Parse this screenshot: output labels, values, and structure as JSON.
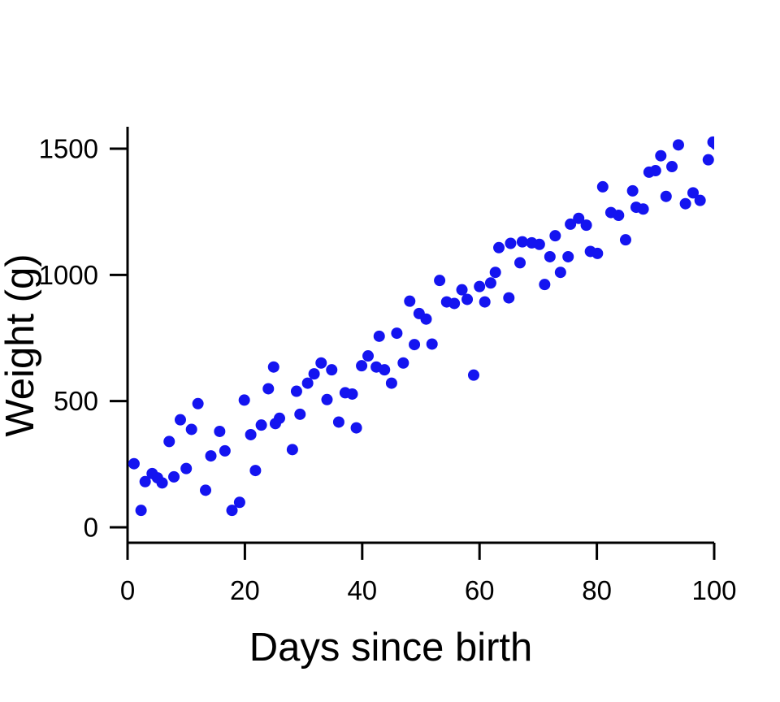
{
  "figure": {
    "background_color": "#ffffff",
    "axis_color": "#000000",
    "point_color": "#1414f0"
  },
  "chart_data": {
    "type": "scatter",
    "title": "",
    "xlabel": "Days since birth",
    "ylabel": "Weight (g)",
    "x_ticks": [
      0,
      20,
      40,
      60,
      80,
      100
    ],
    "y_ticks": [
      0,
      500,
      1000,
      1500
    ],
    "xlim": [
      0,
      100
    ],
    "ylim": [
      0,
      1590
    ],
    "grid": false,
    "legend": null,
    "marker": {
      "shape": "circle",
      "color": "#1414f0",
      "radius_px": 7
    },
    "points": [
      [
        1.1,
        252
      ],
      [
        2.3,
        67
      ],
      [
        3.0,
        181
      ],
      [
        4.2,
        213
      ],
      [
        5.1,
        196
      ],
      [
        5.9,
        176
      ],
      [
        7.1,
        340
      ],
      [
        7.9,
        200
      ],
      [
        9.0,
        426
      ],
      [
        10.0,
        233
      ],
      [
        10.9,
        388
      ],
      [
        12.0,
        490
      ],
      [
        13.3,
        147
      ],
      [
        14.2,
        283
      ],
      [
        15.7,
        380
      ],
      [
        16.6,
        303
      ],
      [
        17.8,
        67
      ],
      [
        19.1,
        99
      ],
      [
        19.9,
        504
      ],
      [
        21.0,
        367
      ],
      [
        21.8,
        225
      ],
      [
        22.8,
        405
      ],
      [
        24.0,
        549
      ],
      [
        24.9,
        635
      ],
      [
        25.2,
        411
      ],
      [
        25.9,
        432
      ],
      [
        28.1,
        308
      ],
      [
        28.8,
        539
      ],
      [
        29.4,
        448
      ],
      [
        30.7,
        571
      ],
      [
        31.8,
        608
      ],
      [
        33.0,
        651
      ],
      [
        34.0,
        506
      ],
      [
        34.8,
        624
      ],
      [
        36.0,
        417
      ],
      [
        37.1,
        533
      ],
      [
        38.3,
        528
      ],
      [
        39.0,
        394
      ],
      [
        39.9,
        640
      ],
      [
        41.0,
        679
      ],
      [
        42.4,
        635
      ],
      [
        42.9,
        757
      ],
      [
        43.8,
        624
      ],
      [
        45.0,
        571
      ],
      [
        45.9,
        769
      ],
      [
        47.0,
        651
      ],
      [
        48.1,
        896
      ],
      [
        48.9,
        724
      ],
      [
        49.7,
        847
      ],
      [
        50.9,
        825
      ],
      [
        51.9,
        726
      ],
      [
        53.2,
        978
      ],
      [
        54.4,
        893
      ],
      [
        55.7,
        887
      ],
      [
        57.0,
        941
      ],
      [
        57.9,
        903
      ],
      [
        59.0,
        603
      ],
      [
        60.0,
        954
      ],
      [
        60.9,
        893
      ],
      [
        61.9,
        968
      ],
      [
        62.7,
        1010
      ],
      [
        63.3,
        1108
      ],
      [
        65.0,
        909
      ],
      [
        65.3,
        1125
      ],
      [
        66.9,
        1048
      ],
      [
        67.3,
        1131
      ],
      [
        68.9,
        1127
      ],
      [
        70.2,
        1121
      ],
      [
        71.1,
        962
      ],
      [
        72.0,
        1072
      ],
      [
        72.9,
        1155
      ],
      [
        73.8,
        1010
      ],
      [
        75.1,
        1072
      ],
      [
        75.5,
        1201
      ],
      [
        76.9,
        1224
      ],
      [
        78.2,
        1197
      ],
      [
        78.9,
        1093
      ],
      [
        80.1,
        1085
      ],
      [
        81.0,
        1349
      ],
      [
        82.4,
        1247
      ],
      [
        83.7,
        1236
      ],
      [
        84.9,
        1139
      ],
      [
        86.1,
        1333
      ],
      [
        86.7,
        1268
      ],
      [
        87.9,
        1261
      ],
      [
        88.9,
        1407
      ],
      [
        90.0,
        1413
      ],
      [
        90.9,
        1472
      ],
      [
        91.8,
        1311
      ],
      [
        92.8,
        1429
      ],
      [
        93.9,
        1515
      ],
      [
        95.1,
        1282
      ],
      [
        96.4,
        1325
      ],
      [
        97.6,
        1295
      ],
      [
        99.0,
        1456
      ],
      [
        99.8,
        1526
      ],
      [
        100.3,
        1517
      ]
    ]
  }
}
